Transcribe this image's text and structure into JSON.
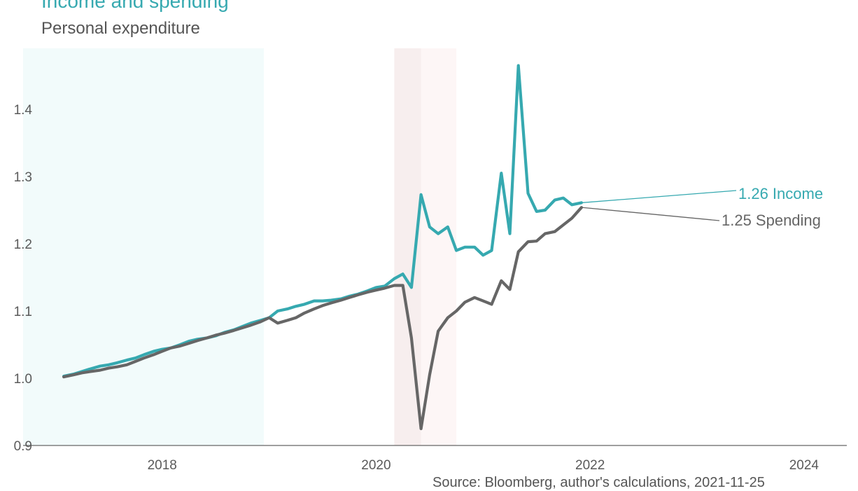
{
  "title": "Income and spending",
  "subtitle": "Personal expenditure",
  "source": "Source: Bloomberg, author's calculations, 2021-11-25",
  "chart_data": {
    "type": "line",
    "title": "Income and spending",
    "subtitle": "Personal expenditure",
    "xlabel": "",
    "ylabel": "",
    "xlim": [
      2016.7,
      2024.4
    ],
    "ylim": [
      0.9,
      1.5
    ],
    "x_ticks": [
      "2018",
      "2020",
      "2022",
      "2024"
    ],
    "y_ticks": [
      "0.9",
      "1.0",
      "1.1",
      "1.2",
      "1.3",
      "1.4"
    ],
    "grid": false,
    "shaded_regions": [
      {
        "from": 2016.7,
        "to": 2018.95,
        "color": "#f2fbfb"
      },
      {
        "from": 2020.17,
        "to": 2020.42,
        "color": "#f7eeee"
      },
      {
        "from": 2020.42,
        "to": 2020.75,
        "color": "#fdf6f6"
      }
    ],
    "series": [
      {
        "name": "Income",
        "color": "#36a9b0",
        "end_label": "1.26 Income",
        "points": [
          [
            2017.08,
            1.003
          ],
          [
            2017.17,
            1.006
          ],
          [
            2017.25,
            1.01
          ],
          [
            2017.33,
            1.014
          ],
          [
            2017.42,
            1.018
          ],
          [
            2017.5,
            1.02
          ],
          [
            2017.58,
            1.023
          ],
          [
            2017.67,
            1.027
          ],
          [
            2017.75,
            1.03
          ],
          [
            2017.83,
            1.035
          ],
          [
            2017.92,
            1.04
          ],
          [
            2018.0,
            1.043
          ],
          [
            2018.08,
            1.045
          ],
          [
            2018.17,
            1.05
          ],
          [
            2018.25,
            1.055
          ],
          [
            2018.33,
            1.058
          ],
          [
            2018.42,
            1.06
          ],
          [
            2018.5,
            1.063
          ],
          [
            2018.58,
            1.068
          ],
          [
            2018.67,
            1.072
          ],
          [
            2018.75,
            1.077
          ],
          [
            2018.83,
            1.082
          ],
          [
            2018.92,
            1.086
          ],
          [
            2019.0,
            1.09
          ],
          [
            2019.08,
            1.1
          ],
          [
            2019.17,
            1.103
          ],
          [
            2019.25,
            1.107
          ],
          [
            2019.33,
            1.11
          ],
          [
            2019.42,
            1.115
          ],
          [
            2019.5,
            1.115
          ],
          [
            2019.58,
            1.116
          ],
          [
            2019.67,
            1.118
          ],
          [
            2019.75,
            1.122
          ],
          [
            2019.83,
            1.125
          ],
          [
            2019.92,
            1.13
          ],
          [
            2020.0,
            1.135
          ],
          [
            2020.08,
            1.137
          ],
          [
            2020.17,
            1.148
          ],
          [
            2020.25,
            1.155
          ],
          [
            2020.33,
            1.135
          ],
          [
            2020.42,
            1.273
          ],
          [
            2020.5,
            1.225
          ],
          [
            2020.58,
            1.215
          ],
          [
            2020.67,
            1.225
          ],
          [
            2020.75,
            1.19
          ],
          [
            2020.83,
            1.195
          ],
          [
            2020.92,
            1.195
          ],
          [
            2021.0,
            1.183
          ],
          [
            2021.08,
            1.19
          ],
          [
            2021.17,
            1.305
          ],
          [
            2021.25,
            1.215
          ],
          [
            2021.33,
            1.465
          ],
          [
            2021.42,
            1.275
          ],
          [
            2021.5,
            1.248
          ],
          [
            2021.58,
            1.25
          ],
          [
            2021.67,
            1.265
          ],
          [
            2021.75,
            1.268
          ],
          [
            2021.83,
            1.258
          ],
          [
            2021.92,
            1.261
          ]
        ]
      },
      {
        "name": "Spending",
        "color": "#666666",
        "end_label": "1.25 Spending",
        "points": [
          [
            2017.08,
            1.002
          ],
          [
            2017.17,
            1.005
          ],
          [
            2017.25,
            1.008
          ],
          [
            2017.33,
            1.01
          ],
          [
            2017.42,
            1.012
          ],
          [
            2017.5,
            1.015
          ],
          [
            2017.58,
            1.017
          ],
          [
            2017.67,
            1.02
          ],
          [
            2017.75,
            1.025
          ],
          [
            2017.83,
            1.03
          ],
          [
            2017.92,
            1.035
          ],
          [
            2018.0,
            1.04
          ],
          [
            2018.08,
            1.045
          ],
          [
            2018.17,
            1.048
          ],
          [
            2018.25,
            1.052
          ],
          [
            2018.33,
            1.056
          ],
          [
            2018.42,
            1.06
          ],
          [
            2018.5,
            1.064
          ],
          [
            2018.58,
            1.067
          ],
          [
            2018.67,
            1.071
          ],
          [
            2018.75,
            1.075
          ],
          [
            2018.83,
            1.079
          ],
          [
            2018.92,
            1.084
          ],
          [
            2019.0,
            1.09
          ],
          [
            2019.08,
            1.082
          ],
          [
            2019.17,
            1.086
          ],
          [
            2019.25,
            1.09
          ],
          [
            2019.33,
            1.097
          ],
          [
            2019.42,
            1.103
          ],
          [
            2019.5,
            1.108
          ],
          [
            2019.58,
            1.112
          ],
          [
            2019.67,
            1.116
          ],
          [
            2019.75,
            1.12
          ],
          [
            2019.83,
            1.124
          ],
          [
            2019.92,
            1.128
          ],
          [
            2020.0,
            1.131
          ],
          [
            2020.08,
            1.134
          ],
          [
            2020.17,
            1.138
          ],
          [
            2020.25,
            1.138
          ],
          [
            2020.33,
            1.06
          ],
          [
            2020.42,
            0.925
          ],
          [
            2020.5,
            1.005
          ],
          [
            2020.58,
            1.07
          ],
          [
            2020.67,
            1.09
          ],
          [
            2020.75,
            1.1
          ],
          [
            2020.83,
            1.113
          ],
          [
            2020.92,
            1.12
          ],
          [
            2021.0,
            1.115
          ],
          [
            2021.08,
            1.11
          ],
          [
            2021.17,
            1.145
          ],
          [
            2021.25,
            1.132
          ],
          [
            2021.33,
            1.188
          ],
          [
            2021.42,
            1.203
          ],
          [
            2021.5,
            1.204
          ],
          [
            2021.58,
            1.215
          ],
          [
            2021.67,
            1.218
          ],
          [
            2021.75,
            1.228
          ],
          [
            2021.83,
            1.238
          ],
          [
            2021.92,
            1.254
          ]
        ]
      }
    ]
  }
}
